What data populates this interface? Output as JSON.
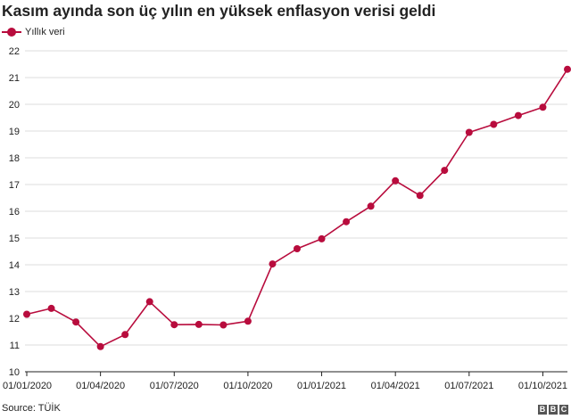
{
  "colors": {
    "series": "#b80c3d",
    "grid": "#dcdcdc",
    "axis": "#222222",
    "text": "#222222"
  },
  "footer": {
    "source": "Source: TÜİK",
    "logo": "BBC"
  },
  "chart_data": {
    "type": "line",
    "title": "Kasım ayında son üç yılın en yüksek enflasyon verisi geldi",
    "xlabel": "",
    "ylabel": "",
    "ylim": [
      10,
      22
    ],
    "yticks": [
      10,
      11,
      12,
      13,
      14,
      15,
      16,
      17,
      18,
      19,
      20,
      21,
      22
    ],
    "grid": "horizontal",
    "legend_position": "top-left",
    "xtick_labels": [
      "01/01/2020",
      "01/04/2020",
      "01/07/2020",
      "01/10/2020",
      "01/01/2021",
      "01/04/2021",
      "01/07/2021",
      "01/10/2021"
    ],
    "x": [
      "01/01/2020",
      "01/02/2020",
      "01/03/2020",
      "01/04/2020",
      "01/05/2020",
      "01/06/2020",
      "01/07/2020",
      "01/08/2020",
      "01/09/2020",
      "01/10/2020",
      "01/11/2020",
      "01/12/2020",
      "01/01/2021",
      "01/02/2021",
      "01/03/2021",
      "01/04/2021",
      "01/05/2021",
      "01/06/2021",
      "01/07/2021",
      "01/08/2021",
      "01/09/2021",
      "01/10/2021",
      "01/11/2021"
    ],
    "series": [
      {
        "name": "Yıllık veri",
        "values": [
          12.15,
          12.37,
          11.86,
          10.94,
          11.39,
          12.62,
          11.76,
          11.77,
          11.75,
          11.89,
          14.03,
          14.6,
          14.97,
          15.61,
          16.19,
          17.14,
          16.59,
          17.53,
          18.95,
          19.25,
          19.58,
          19.89,
          21.31
        ]
      }
    ]
  }
}
